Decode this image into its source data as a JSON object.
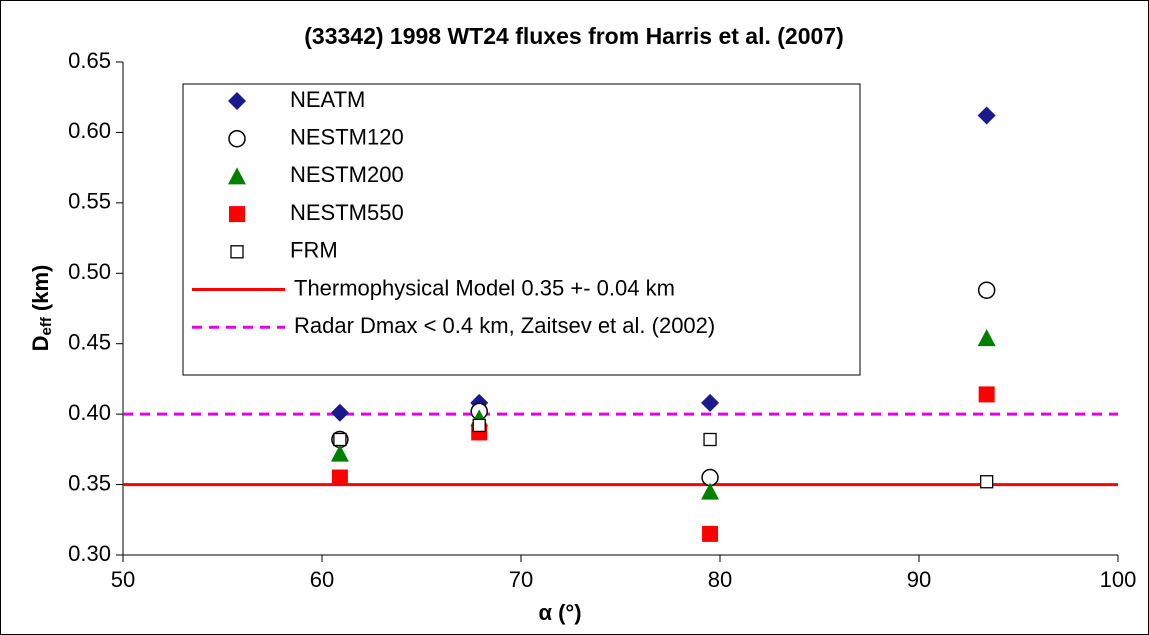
{
  "chart_data": {
    "type": "scatter",
    "title": "(33342) 1998 WT24 fluxes from Harris et al. (2007)",
    "xlabel": "α (°)",
    "ylabel": {
      "main": "D",
      "sub": "eff",
      "unit": "(km)"
    },
    "x": [
      60.9,
      67.9,
      79.5,
      93.4
    ],
    "series": [
      {
        "name": "NEATM",
        "color": "#1a1a8c",
        "marker": "diamond",
        "values": [
          0.401,
          0.408,
          0.408,
          0.612
        ]
      },
      {
        "name": "NESTM120",
        "color": "#000000",
        "marker": "circle",
        "values": [
          0.382,
          0.402,
          0.355,
          0.488
        ]
      },
      {
        "name": "NESTM200",
        "color": "#008000",
        "marker": "triangle",
        "values": [
          0.372,
          0.397,
          0.345,
          0.454
        ]
      },
      {
        "name": "NESTM550",
        "color": "#ff0000",
        "marker": "square",
        "values": [
          0.355,
          0.387,
          0.315,
          0.414
        ]
      },
      {
        "name": "FRM",
        "color": "#000000",
        "marker": "open-square",
        "values": [
          0.382,
          0.392,
          0.382,
          0.352
        ]
      }
    ],
    "lines": [
      {
        "name": "Thermophysical Model 0.35 +- 0.04 km",
        "color": "#ff0000",
        "style": "solid",
        "value": 0.35
      },
      {
        "name": "Radar Dmax < 0.4 km, Zaitsev et al. (2002)",
        "color": "#e600e6",
        "style": "dashed",
        "value": 0.4
      }
    ],
    "xlim": [
      50,
      100
    ],
    "xticks": [
      50,
      60,
      70,
      80,
      90,
      100
    ],
    "ylim": [
      0.3,
      0.65
    ],
    "yticks": [
      {
        "value": 0.3,
        "label": "0.30"
      },
      0.35,
      {
        "value": 0.4,
        "label": "0.40"
      },
      0.45,
      {
        "value": 0.5,
        "label": "0.50"
      },
      0.55,
      {
        "value": 0.6,
        "label": "0.60"
      },
      0.65
    ]
  }
}
